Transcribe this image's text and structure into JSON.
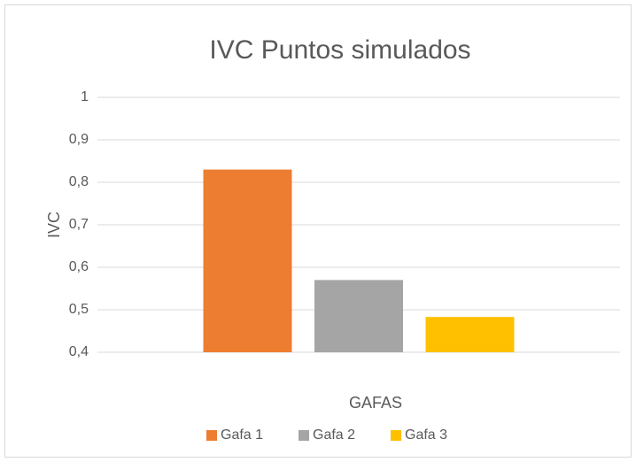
{
  "chart_data": {
    "type": "bar",
    "title": "IVC Puntos simulados",
    "xlabel": "GAFAS",
    "ylabel": "IVC",
    "categories": [
      null
    ],
    "series": [
      {
        "name": "Gafa 1",
        "color": "#ed7d31",
        "values": [
          0.83
        ]
      },
      {
        "name": "Gafa 2",
        "color": "#a5a5a5",
        "values": [
          0.57
        ]
      },
      {
        "name": "Gafa 3",
        "color": "#ffc000",
        "values": [
          0.483
        ]
      }
    ],
    "ylim": [
      0.4,
      1
    ],
    "yticks": [
      {
        "value": 0.4,
        "label": "0,4"
      },
      {
        "value": 0.5,
        "label": "0,5"
      },
      {
        "value": 0.6,
        "label": "0,6"
      },
      {
        "value": 0.7,
        "label": "0,7"
      },
      {
        "value": 0.8,
        "label": "0,8"
      },
      {
        "value": 0.9,
        "label": "0,9"
      },
      1
    ],
    "grid": true,
    "legend": "bottom"
  }
}
